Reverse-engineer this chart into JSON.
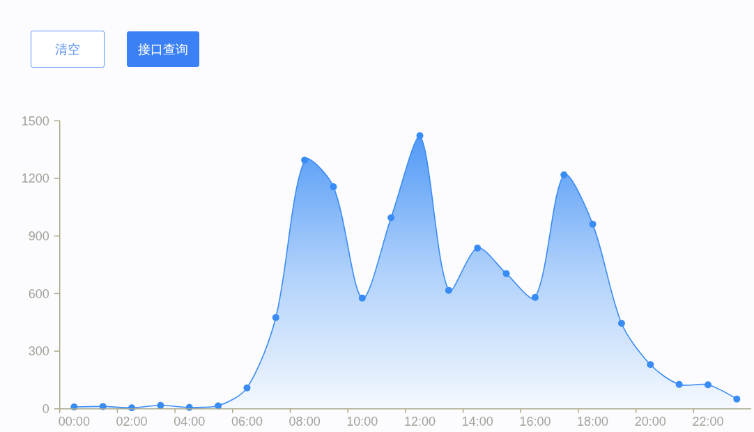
{
  "chart_data": {
    "type": "area",
    "categories": [
      "00:00",
      null,
      "02:00",
      null,
      "04:00",
      null,
      "06:00",
      null,
      "08:00",
      null,
      "10:00",
      null,
      "12:00",
      null,
      "14:00",
      null,
      "16:00",
      null,
      "18:00",
      null,
      "20:00",
      null,
      "22:00",
      null
    ],
    "series": [
      {
        "color": "#3a8cf5",
        "values": [
          10,
          12,
          5,
          18,
          7,
          15,
          109,
          475,
          1295,
          1156,
          577,
          995,
          1422,
          617,
          837,
          704,
          580,
          1218,
          961,
          445,
          230,
          127,
          125,
          51
        ]
      }
    ],
    "ylim": [
      0,
      1500
    ],
    "yticks": [
      0,
      300,
      600,
      900,
      1200,
      1500
    ],
    "marker": "circle",
    "annotations": [
      "清空",
      "接口查询"
    ]
  }
}
